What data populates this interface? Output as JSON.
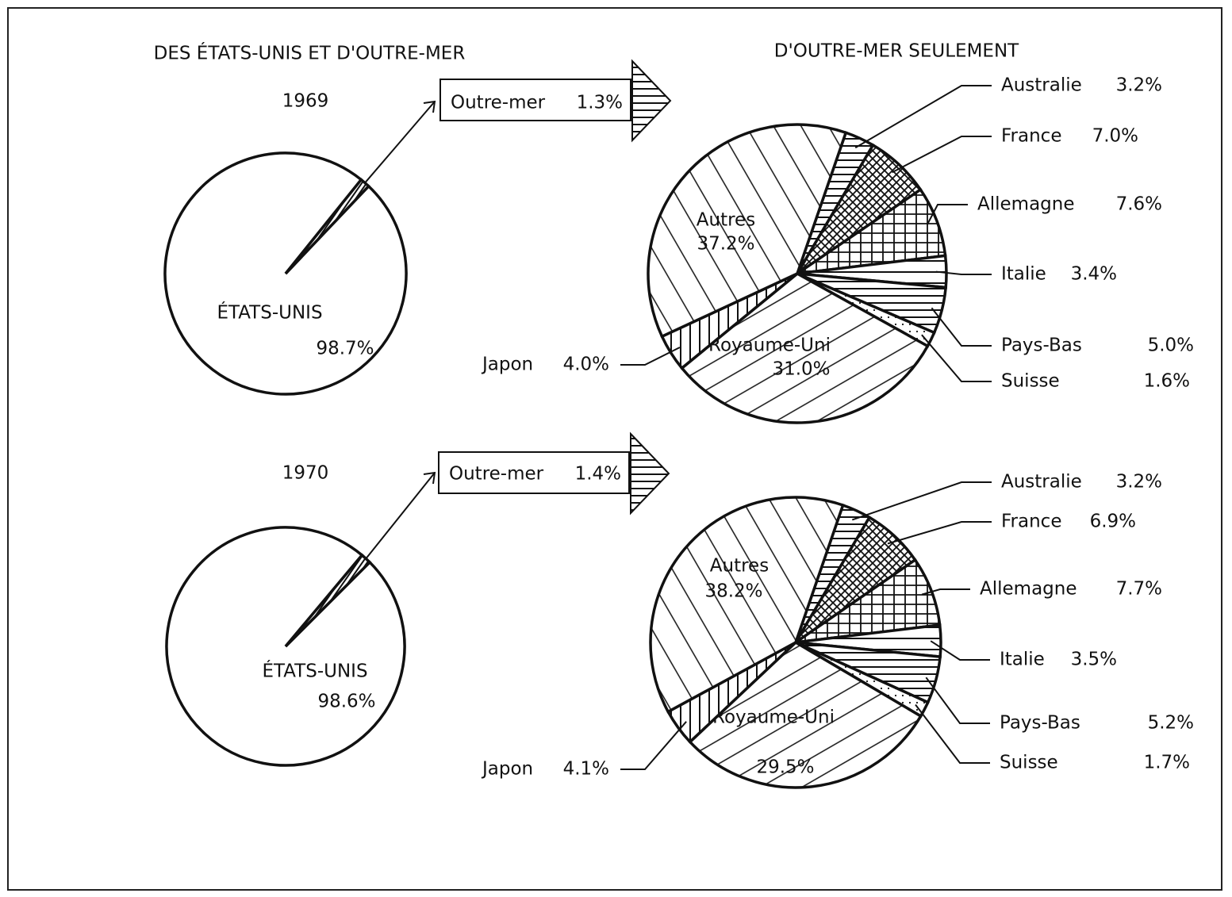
{
  "column_titles": [
    "DES ÉTATS-UNIS ET D'OUTRE-MER",
    "D'OUTRE-MER SEULEMENT"
  ],
  "chart_data": [
    {
      "type": "pie",
      "title": "1969",
      "categories": [
        "ÉTATS-UNIS",
        "Outre-mer"
      ],
      "values": [
        98.7,
        1.3
      ],
      "value_labels": [
        "98.7%",
        "1.3%"
      ]
    },
    {
      "type": "pie",
      "categories": [
        "Australie",
        "France",
        "Allemagne",
        "Italie",
        "Pays-Bas",
        "Suisse",
        "Royaume-Uni",
        "Japon",
        "Autres"
      ],
      "values": [
        3.2,
        7.0,
        7.6,
        3.4,
        5.0,
        1.6,
        31.0,
        4.0,
        37.2
      ],
      "value_labels": [
        "3.2%",
        "7.0%",
        "7.6%",
        "3.4%",
        "5.0%",
        "1.6%",
        "31.0%",
        "4.0%",
        "37.2%"
      ]
    },
    {
      "type": "pie",
      "title": "1970",
      "categories": [
        "ÉTATS-UNIS",
        "Outre-mer"
      ],
      "values": [
        98.6,
        1.4
      ],
      "value_labels": [
        "98.6%",
        "1.4%"
      ]
    },
    {
      "type": "pie",
      "categories": [
        "Australie",
        "France",
        "Allemagne",
        "Italie",
        "Pays-Bas",
        "Suisse",
        "Royaume-Uni",
        "Japon",
        "Autres"
      ],
      "values": [
        3.2,
        6.9,
        7.7,
        3.5,
        5.2,
        1.7,
        29.5,
        4.1,
        38.2
      ],
      "value_labels": [
        "3.2%",
        "6.9%",
        "7.7%",
        "3.5%",
        "5.2%",
        "1.7%",
        "29.5%",
        "4.1%",
        "38.2%"
      ]
    }
  ]
}
